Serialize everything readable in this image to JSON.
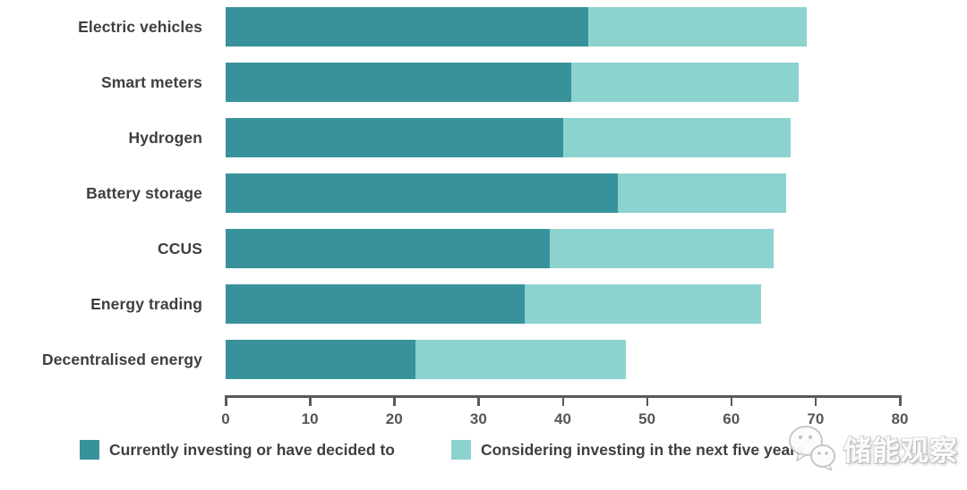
{
  "legend": {
    "items": [
      {
        "label": "Currently investing or have decided to",
        "color": "#38929B"
      },
      {
        "label": "Considering investing in the next five years",
        "color": "#8CD2CF"
      }
    ]
  },
  "watermark": {
    "logo": "wechat-logo",
    "text": "储能观察"
  },
  "chart_data": {
    "type": "bar",
    "orientation": "horizontal",
    "stacked": true,
    "title": "",
    "xlabel": "",
    "ylabel": "",
    "categories": [
      "Electric vehicles",
      "Smart meters",
      "Hydrogen",
      "Battery storage",
      "CCUS",
      "Energy trading",
      "Decentralised energy"
    ],
    "series": [
      {
        "name": "Currently investing or have decided to",
        "color": "#38929B",
        "values": [
          43,
          41,
          40,
          46.5,
          38.5,
          35.5,
          22.5
        ]
      },
      {
        "name": "Considering investing in the next five years",
        "color": "#8CD2CF",
        "values": [
          26,
          27,
          27,
          20,
          26.5,
          28,
          25
        ]
      }
    ],
    "totals": [
      69,
      68,
      67,
      66.5,
      65,
      63.5,
      47.5
    ],
    "xlim": [
      0,
      80
    ],
    "xticks": [
      0,
      10,
      20,
      30,
      40,
      50,
      60,
      70,
      80
    ],
    "grid": false,
    "legend_position": "bottom"
  }
}
